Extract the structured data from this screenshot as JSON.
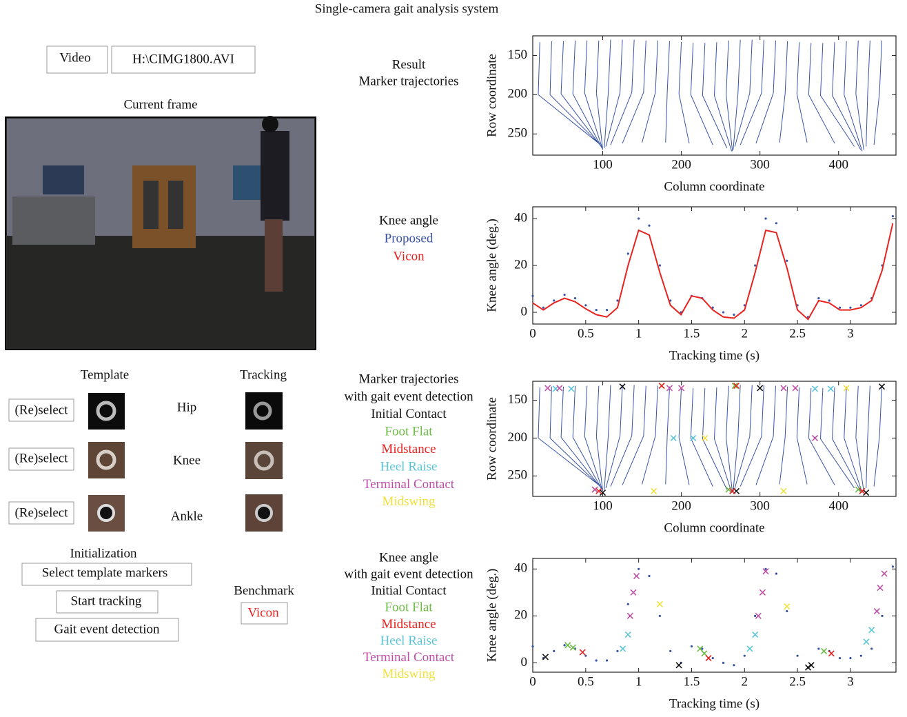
{
  "header": {
    "title": "Single-camera gait analysis system"
  },
  "controls": {
    "video_button": "Video",
    "video_path": "H:\\CIMG1800.AVI"
  },
  "frame": {
    "label": "Current frame"
  },
  "markers": {
    "template_label": "Template",
    "tracking_label": "Tracking",
    "rows": [
      {
        "button": "(Re)select",
        "joint": "Hip"
      },
      {
        "button": "(Re)select",
        "joint": "Knee"
      },
      {
        "button": "(Re)select",
        "joint": "Ankle"
      }
    ]
  },
  "initialization": {
    "label": "Initialization",
    "buttons": [
      "Select template markers",
      "Start tracking",
      "Gait event detection"
    ]
  },
  "benchmark": {
    "label": "Benchmark",
    "button": "Vicon"
  },
  "chart_data": [
    {
      "type": "segments",
      "title": [
        "Result",
        "Marker trajectories"
      ],
      "xlabel": "Column coordinate",
      "ylabel": "Row coordinate",
      "color": "#3953a4",
      "xlim": [
        11,
        473
      ],
      "ylim": [
        277,
        125
      ],
      "xticks": [
        100,
        200,
        300,
        400
      ],
      "yticks": [
        150,
        200,
        250
      ],
      "hip": {
        "x": [
          20,
          35,
          50,
          65,
          80,
          95,
          110,
          125,
          140,
          155,
          170,
          185,
          200,
          215,
          230,
          245,
          260,
          275,
          290,
          305,
          320,
          335,
          350,
          365,
          380,
          395,
          410,
          425,
          440,
          455
        ],
        "y": [
          133,
          132,
          132,
          131,
          131,
          131,
          130,
          130,
          130,
          131,
          131,
          132,
          133,
          134,
          134,
          133,
          131,
          130,
          130,
          130,
          131,
          132,
          133,
          134,
          134,
          133,
          132,
          131,
          131,
          131
        ]
      },
      "knee": {
        "x": [
          18,
          33,
          47,
          62,
          77,
          92,
          107,
          122,
          137,
          152,
          167,
          182,
          197,
          212,
          227,
          242,
          257,
          272,
          287,
          302,
          317,
          332,
          347,
          362,
          377,
          392,
          407,
          422,
          437,
          452
        ],
        "y": [
          200,
          200,
          199,
          199,
          198,
          198,
          198,
          197,
          197,
          197,
          197,
          198,
          199,
          200,
          201,
          201,
          200,
          199,
          198,
          198,
          198,
          199,
          199,
          200,
          201,
          201,
          200,
          199,
          199,
          198
        ]
      },
      "ankle": {
        "x": [
          95,
          97,
          98,
          99,
          100,
          100,
          102,
          104,
          110,
          125,
          150,
          180,
          210,
          240,
          258,
          264,
          265,
          266,
          268,
          275,
          295,
          325,
          360,
          395,
          420,
          428,
          430,
          432,
          435,
          445
        ],
        "y": [
          262,
          264,
          266,
          268,
          270,
          270,
          268,
          266,
          264,
          262,
          261,
          261,
          262,
          264,
          268,
          272,
          272,
          270,
          266,
          264,
          262,
          261,
          261,
          262,
          266,
          270,
          272,
          270,
          266,
          264
        ]
      },
      "series": []
    },
    {
      "type": "scatter",
      "title": [
        "Knee angle"
      ],
      "xlabel": "Tracking time (s)",
      "ylabel": "Knee angle (deg.)",
      "xlim": [
        0,
        3.43
      ],
      "ylim": [
        -5,
        45
      ],
      "xticks": [
        0,
        0.5,
        1,
        1.5,
        2,
        2.5,
        3
      ],
      "yticks": [
        0,
        20,
        40
      ],
      "x": [
        0,
        0.1,
        0.2,
        0.3,
        0.4,
        0.5,
        0.6,
        0.7,
        0.8,
        0.9,
        1,
        1.1,
        1.2,
        1.3,
        1.4,
        1.5,
        1.6,
        1.7,
        1.8,
        1.9,
        2,
        2.1,
        2.2,
        2.3,
        2.4,
        2.5,
        2.6,
        2.7,
        2.8,
        2.9,
        3,
        3.1,
        3.2,
        3.3,
        3.4
      ],
      "series": [
        {
          "name": "Proposed",
          "color": "#3953a4",
          "mode": "dots",
          "values": [
            7,
            2,
            5,
            7.5,
            6,
            3,
            1,
            1,
            5,
            25,
            40,
            37,
            20,
            5,
            0,
            7,
            6,
            2,
            0,
            -1,
            3,
            20,
            40,
            38,
            22,
            3,
            -2,
            6,
            5,
            2,
            2,
            3,
            6,
            20,
            41
          ]
        },
        {
          "name": "Vicon",
          "color": "#e8231f",
          "mode": "line",
          "values": [
            4,
            1,
            4,
            6,
            4.5,
            1.5,
            -1,
            -2,
            2,
            20,
            35,
            33,
            17,
            3,
            -1,
            7,
            6,
            1,
            -2,
            -2.5,
            1,
            17,
            35,
            34,
            19,
            1,
            -3,
            5,
            4,
            1,
            1,
            2,
            5,
            18,
            38
          ]
        }
      ]
    },
    {
      "type": "segments",
      "title": [
        "Marker trajectories",
        "with gait event detection"
      ],
      "xlabel": "Column coordinate",
      "ylabel": "Row coordinate",
      "color": "#3953a4",
      "xlim": [
        11,
        473
      ],
      "ylim": [
        277,
        125
      ],
      "xticks": [
        100,
        200,
        300,
        400
      ],
      "yticks": [
        150,
        200,
        250
      ],
      "hip": {
        "x": [
          20,
          35,
          50,
          65,
          80,
          95,
          110,
          125,
          140,
          155,
          170,
          185,
          200,
          215,
          230,
          245,
          260,
          275,
          290,
          305,
          320,
          335,
          350,
          365,
          380,
          395,
          410,
          425,
          440,
          455
        ],
        "y": [
          133,
          132,
          132,
          131,
          131,
          131,
          130,
          130,
          130,
          131,
          131,
          132,
          133,
          134,
          134,
          133,
          131,
          130,
          130,
          130,
          131,
          132,
          133,
          134,
          134,
          133,
          132,
          131,
          131,
          131
        ]
      },
      "knee": {
        "x": [
          18,
          33,
          47,
          62,
          77,
          92,
          107,
          122,
          137,
          152,
          167,
          182,
          197,
          212,
          227,
          242,
          257,
          272,
          287,
          302,
          317,
          332,
          347,
          362,
          377,
          392,
          407,
          422,
          437,
          452
        ],
        "y": [
          200,
          200,
          199,
          199,
          198,
          198,
          198,
          197,
          197,
          197,
          197,
          198,
          199,
          200,
          201,
          201,
          200,
          199,
          198,
          198,
          198,
          199,
          199,
          200,
          201,
          201,
          200,
          199,
          199,
          198
        ]
      },
      "ankle": {
        "x": [
          95,
          97,
          98,
          99,
          100,
          100,
          102,
          104,
          110,
          125,
          150,
          180,
          210,
          240,
          258,
          264,
          265,
          266,
          268,
          275,
          295,
          325,
          360,
          395,
          420,
          428,
          430,
          432,
          435,
          445
        ],
        "y": [
          262,
          264,
          266,
          268,
          270,
          270,
          268,
          266,
          264,
          262,
          261,
          261,
          262,
          264,
          268,
          272,
          272,
          270,
          266,
          264,
          262,
          261,
          261,
          262,
          266,
          270,
          272,
          270,
          266,
          264
        ]
      },
      "series": [
        {
          "name": "Initial Contact",
          "color": "#111111",
          "mode": "cross",
          "x": [
            100,
            125,
            270,
            300,
            435,
            455
          ],
          "values": [
            272,
            132,
            270,
            134,
            272,
            132
          ]
        },
        {
          "name": "Foot Flat",
          "color": "#6cbd45",
          "mode": "cross",
          "x": [
            90,
            175,
            260,
            268,
            425
          ],
          "values": [
            268,
            131,
            268,
            131,
            268
          ]
        },
        {
          "name": "Midstance",
          "color": "#e8231f",
          "mode": "cross",
          "x": [
            95,
            175,
            265,
            270,
            430
          ],
          "values": [
            270,
            131,
            270,
            131,
            270
          ]
        },
        {
          "name": "Heel Raise",
          "color": "#5bc5d8",
          "mode": "cross",
          "x": [
            40,
            60,
            190,
            215,
            370,
            390
          ],
          "values": [
            135,
            135,
            200,
            200,
            135,
            135
          ]
        },
        {
          "name": "Terminal Contact",
          "color": "#c04fa8",
          "mode": "cross",
          "x": [
            30,
            45,
            90,
            185,
            200,
            330,
            345,
            370
          ],
          "values": [
            134,
            134,
            268,
            134,
            134,
            134,
            134,
            200
          ]
        },
        {
          "name": "Midswing",
          "color": "#f2e03c",
          "mode": "cross",
          "x": [
            165,
            230,
            330,
            410
          ],
          "values": [
            270,
            200,
            270,
            134
          ]
        }
      ]
    },
    {
      "type": "scatter",
      "title": [
        "Knee angle",
        "with gait event detection"
      ],
      "xlabel": "Tracking time (s)",
      "ylabel": "Knee angle (deg.)",
      "xlim": [
        0,
        3.43
      ],
      "ylim": [
        -4,
        44.5
      ],
      "xticks": [
        0,
        0.5,
        1,
        1.5,
        2,
        2.5,
        3
      ],
      "yticks": [
        0,
        20,
        40
      ],
      "x": [
        0,
        0.1,
        0.2,
        0.3,
        0.4,
        0.5,
        0.6,
        0.7,
        0.8,
        0.9,
        1,
        1.1,
        1.2,
        1.3,
        1.4,
        1.5,
        1.6,
        1.7,
        1.8,
        1.9,
        2,
        2.1,
        2.2,
        2.3,
        2.4,
        2.5,
        2.6,
        2.7,
        2.8,
        2.9,
        3,
        3.1,
        3.2,
        3.3,
        3.4
      ],
      "series": [
        {
          "color": "#3953a4",
          "mode": "dots",
          "values": [
            7,
            2,
            5,
            7.5,
            6,
            3,
            1,
            1,
            5,
            25,
            40,
            37,
            20,
            5,
            0,
            7,
            6,
            2,
            0,
            -1,
            3,
            20,
            40,
            38,
            22,
            3,
            -2,
            6,
            5,
            2,
            2,
            3,
            6,
            20,
            41
          ]
        },
        {
          "name": "Initial Contact",
          "color": "#111111",
          "mode": "cross",
          "x": [
            0.12,
            1.38,
            2.6,
            2.63
          ],
          "values": [
            2.5,
            -1,
            -2,
            -1
          ]
        },
        {
          "name": "Foot Flat",
          "color": "#6cbd45",
          "mode": "cross",
          "x": [
            0.33,
            0.38,
            1.58,
            1.62,
            2.75
          ],
          "values": [
            7.5,
            6.5,
            6,
            4,
            5
          ]
        },
        {
          "name": "Midstance",
          "color": "#e8231f",
          "mode": "cross",
          "x": [
            0.47,
            1.66,
            2.82
          ],
          "values": [
            4.5,
            2,
            4
          ]
        },
        {
          "name": "Heel Raise",
          "color": "#5bc5d8",
          "mode": "cross",
          "x": [
            0.85,
            0.9,
            2.05,
            2.1,
            3.15,
            3.2
          ],
          "values": [
            6,
            12,
            6,
            12,
            9,
            14
          ]
        },
        {
          "name": "Terminal Contact",
          "color": "#c04fa8",
          "mode": "cross",
          "x": [
            0.92,
            0.95,
            0.98,
            2.13,
            2.17,
            2.2,
            3.25,
            3.28,
            3.32
          ],
          "values": [
            20,
            30,
            37,
            20,
            30,
            39,
            22,
            32,
            38
          ]
        },
        {
          "name": "Midswing",
          "color": "#f2e03c",
          "mode": "cross",
          "x": [
            1.2,
            2.4
          ],
          "values": [
            25,
            24
          ]
        }
      ]
    }
  ]
}
